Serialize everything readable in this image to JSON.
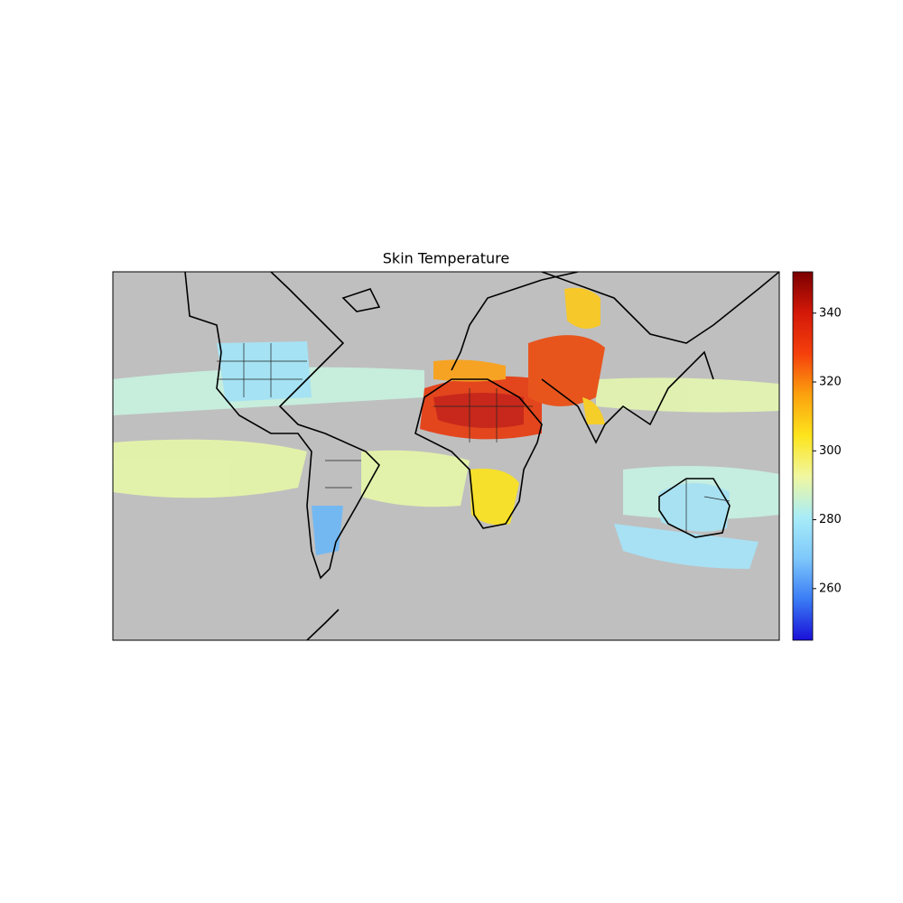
{
  "chart_data": {
    "type": "map",
    "title": "Skin Temperature",
    "clim": [
      245,
      352
    ],
    "cticks": [
      260,
      280,
      300,
      320,
      340
    ],
    "colormap": [
      "#1a10d8",
      "#3a7cf5",
      "#7ec8fb",
      "#a8ecf8",
      "#f0f7a0",
      "#fde41c",
      "#fca10e",
      "#f5400c",
      "#d41808",
      "#7a0000"
    ]
  }
}
